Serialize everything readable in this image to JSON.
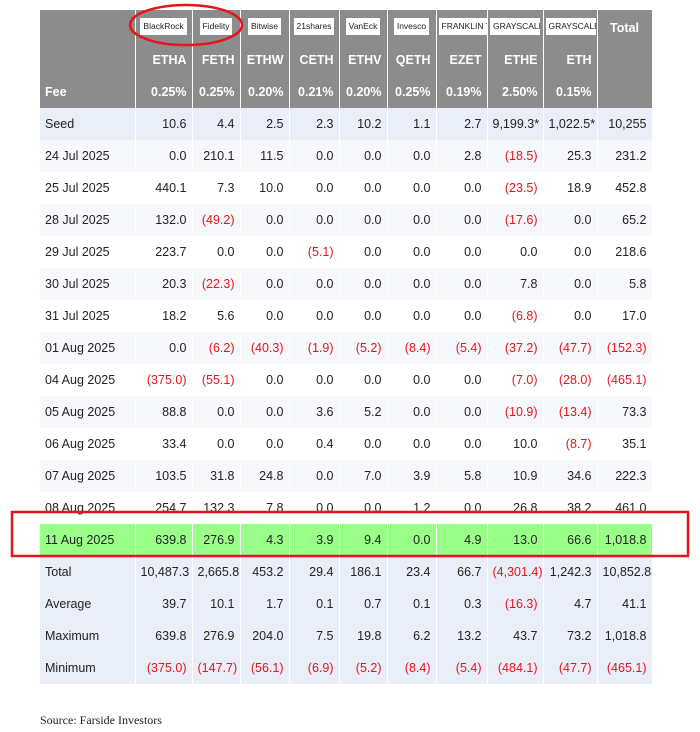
{
  "table": {
    "logos": [
      "BlackRock",
      "Fidelity",
      "Bitwise",
      "21shares",
      "VanEck",
      "Invesco",
      "FRANKLIN TEMPLETON",
      "GRAYSCALE",
      "GRAYSCALE",
      "Total"
    ],
    "tickers": [
      "ETHA",
      "FETH",
      "ETHW",
      "CETH",
      "ETHV",
      "QETH",
      "EZET",
      "ETHE",
      "ETH"
    ],
    "fee": [
      "Fee",
      "0.25%",
      "0.25%",
      "0.20%",
      "0.21%",
      "0.20%",
      "0.25%",
      "0.19%",
      "2.50%",
      "0.15%"
    ],
    "rows": [
      [
        "Seed",
        "10.6",
        "4.4",
        "2.5",
        "2.3",
        "10.2",
        "1.1",
        "2.7",
        "9,199.3*",
        "1,022.5*",
        "10,255"
      ],
      [
        "24 Jul 2025",
        "0.0",
        "210.1",
        "11.5",
        "0.0",
        "0.0",
        "0.0",
        "2.8",
        "(18.5)",
        "25.3",
        "231.2"
      ],
      [
        "25 Jul 2025",
        "440.1",
        "7.3",
        "10.0",
        "0.0",
        "0.0",
        "0.0",
        "0.0",
        "(23.5)",
        "18.9",
        "452.8"
      ],
      [
        "28 Jul 2025",
        "132.0",
        "(49.2)",
        "0.0",
        "0.0",
        "0.0",
        "0.0",
        "0.0",
        "(17.6)",
        "0.0",
        "65.2"
      ],
      [
        "29 Jul 2025",
        "223.7",
        "0.0",
        "0.0",
        "(5.1)",
        "0.0",
        "0.0",
        "0.0",
        "0.0",
        "0.0",
        "218.6"
      ],
      [
        "30 Jul 2025",
        "20.3",
        "(22.3)",
        "0.0",
        "0.0",
        "0.0",
        "0.0",
        "0.0",
        "7.8",
        "0.0",
        "5.8"
      ],
      [
        "31 Jul 2025",
        "18.2",
        "5.6",
        "0.0",
        "0.0",
        "0.0",
        "0.0",
        "0.0",
        "(6.8)",
        "0.0",
        "17.0"
      ],
      [
        "01 Aug 2025",
        "0.0",
        "(6.2)",
        "(40.3)",
        "(1.9)",
        "(5.2)",
        "(8.4)",
        "(5.4)",
        "(37.2)",
        "(47.7)",
        "(152.3)"
      ],
      [
        "04 Aug 2025",
        "(375.0)",
        "(55.1)",
        "0.0",
        "0.0",
        "0.0",
        "0.0",
        "0.0",
        "(7.0)",
        "(28.0)",
        "(465.1)"
      ],
      [
        "05 Aug 2025",
        "88.8",
        "0.0",
        "0.0",
        "3.6",
        "5.2",
        "0.0",
        "0.0",
        "(10.9)",
        "(13.4)",
        "73.3"
      ],
      [
        "06 Aug 2025",
        "33.4",
        "0.0",
        "0.0",
        "0.4",
        "0.0",
        "0.0",
        "0.0",
        "10.0",
        "(8.7)",
        "35.1"
      ],
      [
        "07 Aug 2025",
        "103.5",
        "31.8",
        "24.8",
        "0.0",
        "7.0",
        "3.9",
        "5.8",
        "10.9",
        "34.6",
        "222.3"
      ],
      [
        "08 Aug 2025",
        "254.7",
        "132.3",
        "7.8",
        "0.0",
        "0.0",
        "1.2",
        "0.0",
        "26.8",
        "38.2",
        "461.0"
      ],
      [
        "11 Aug 2025",
        "639.8",
        "276.9",
        "4.3",
        "3.9",
        "9.4",
        "0.0",
        "4.9",
        "13.0",
        "66.6",
        "1,018.8"
      ],
      [
        "Total",
        "10,487.3",
        "2,665.8",
        "453.2",
        "29.4",
        "186.1",
        "23.4",
        "66.7",
        "(4,301.4)",
        "1,242.3",
        "10,852.8"
      ],
      [
        "Average",
        "39.7",
        "10.1",
        "1.7",
        "0.1",
        "0.7",
        "0.1",
        "0.3",
        "(16.3)",
        "4.7",
        "41.1"
      ],
      [
        "Maximum",
        "639.8",
        "276.9",
        "204.0",
        "7.5",
        "19.8",
        "6.2",
        "13.2",
        "43.7",
        "73.2",
        "1,018.8"
      ],
      [
        "Minimum",
        "(375.0)",
        "(147.7)",
        "(56.1)",
        "(6.9)",
        "(5.2)",
        "(8.4)",
        "(5.4)",
        "(484.1)",
        "(47.7)",
        "(465.1)"
      ]
    ]
  },
  "source": "Source: Farside Investors"
}
